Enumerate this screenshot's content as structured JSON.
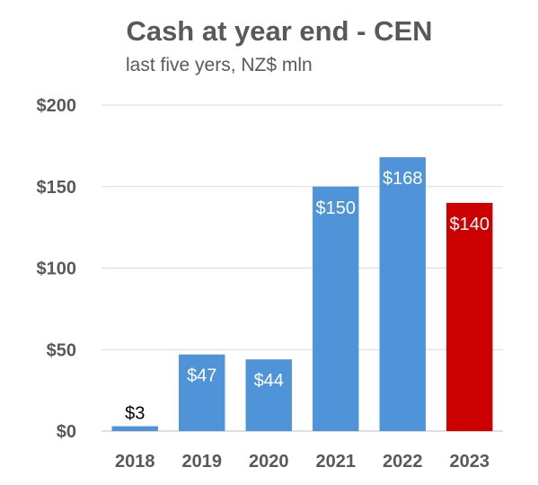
{
  "chart_data": {
    "type": "bar",
    "title": "Cash at year end - CEN",
    "subtitle": "last five yers, NZ$ mln",
    "xlabel": "",
    "ylabel": "",
    "categories": [
      "2018",
      "2019",
      "2020",
      "2021",
      "2022",
      "2023"
    ],
    "values": [
      3,
      47,
      44,
      150,
      168,
      140
    ],
    "data_labels": [
      "$3",
      "$47",
      "$44",
      "$150",
      "$168",
      "$140"
    ],
    "ylim": [
      0,
      200
    ],
    "yticks": [
      0,
      50,
      100,
      150,
      200
    ],
    "ytick_labels": [
      "$0",
      "$50",
      "$100",
      "$150",
      "$200"
    ],
    "grid": true,
    "legend": "none",
    "colors": {
      "default_bar": "#4f93d8",
      "highlight_bar": "#cc0000",
      "highlight_index": 5,
      "label_inside": "#ffffff",
      "label_outside": "#000000"
    }
  }
}
